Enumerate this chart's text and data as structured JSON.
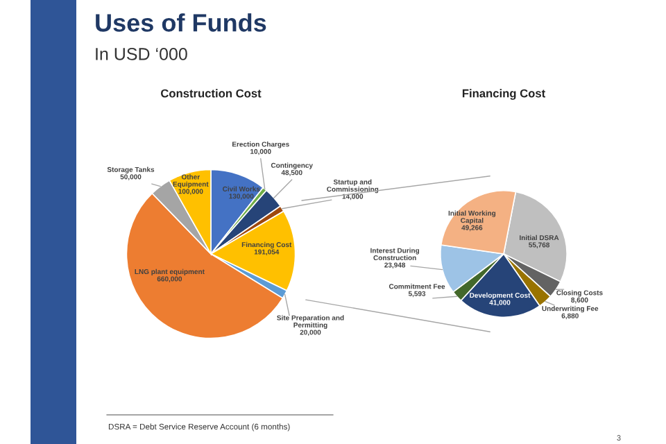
{
  "chart_data": [
    {
      "type": "pie",
      "title": "Construction Cost",
      "value_labels": [
        "130,000",
        "10,000",
        "48,500",
        "14,000",
        "191,054",
        "20,000",
        "660,000",
        "50,000",
        "100,000"
      ],
      "annotations": [
        "Uses of Funds",
        "In USD ‘000",
        "DSRA = Debt Service Reserve Account (6 months)",
        "3"
      ],
      "categories": [
        "Civil Works",
        "Erection Charges",
        "Contingency",
        "Startup and Commissioning",
        "Financing Cost",
        "Site Preparation and Permitting",
        "LNG plant equipment",
        "Storage Tanks",
        "Other Equipment"
      ],
      "values": [
        130000,
        10000,
        48500,
        14000,
        191054,
        20000,
        660000,
        50000,
        100000
      ],
      "colors": [
        "#4472c4",
        "#70ad47",
        "#264478",
        "#9e480e",
        "#ffc000",
        "#5b9bd5",
        "#ed7d31",
        "#a5a5a5",
        "#ffc000"
      ]
    },
    {
      "type": "pie",
      "title": "Financing Cost",
      "value_labels": [
        "55,768",
        "8,600",
        "6,880",
        "41,000",
        "5,593",
        "23,948",
        "49,266"
      ],
      "categories": [
        "Initial DSRA",
        "Closing Costs",
        "Underwriting Fee",
        "Development Cost",
        "Commitment Fee",
        "Interest During Construction",
        "Initial Working Capital"
      ],
      "values": [
        55768,
        8600,
        6880,
        41000,
        5593,
        23948,
        49266
      ],
      "colors": [
        "#bfbfbf",
        "#636363",
        "#997300",
        "#264478",
        "#43682b",
        "#9dc3e6",
        "#f4b183"
      ]
    }
  ]
}
